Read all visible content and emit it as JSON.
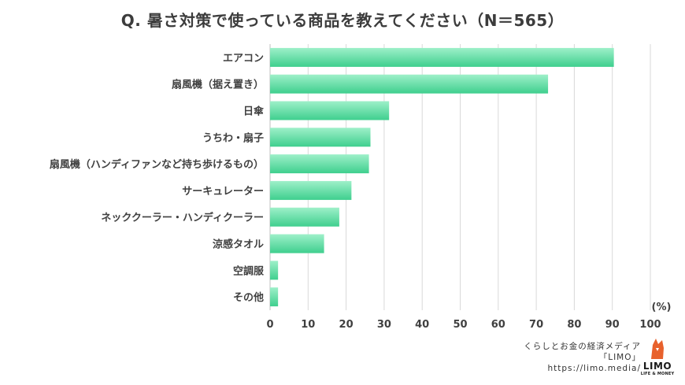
{
  "title": "Q. 暑さ対策で使っている商品を教えてください（N＝565）",
  "chart_data": {
    "type": "bar",
    "orientation": "horizontal",
    "title": "Q. 暑さ対策で使っている商品を教えてください（N＝565）",
    "unit_label": "(%)",
    "categories": [
      "エアコン",
      "扇風機（据え置き）",
      "日傘",
      "うちわ・扇子",
      "扇風機（ハンディファンなど持ち歩けるもの）",
      "サーキュレーター",
      "ネッククーラー・ハンディクーラー",
      "涼感タオル",
      "空調服",
      "その他"
    ],
    "values": [
      90.4,
      73.1,
      31.3,
      26.4,
      26.0,
      21.4,
      18.2,
      14.2,
      2.1,
      2.1
    ],
    "xlim": [
      0,
      100
    ],
    "xticks": [
      0,
      10,
      20,
      30,
      40,
      50,
      60,
      70,
      80,
      90,
      100
    ],
    "grid": true,
    "legend": "none",
    "colors": {
      "bar_top": "#9ef0c9",
      "bar_bottom": "#3fcf8e",
      "grid": "#d9d9d9",
      "axis": "#bfbfbf"
    }
  },
  "credit": {
    "line1": "くらしとお金の経済メディア",
    "line2": "「LIMO」",
    "line3": "https://limo.media/"
  },
  "logo": {
    "text": "LIMO",
    "sub": "LIFE & MONEY",
    "icon": "fox-icon",
    "color": "#e8612c"
  }
}
